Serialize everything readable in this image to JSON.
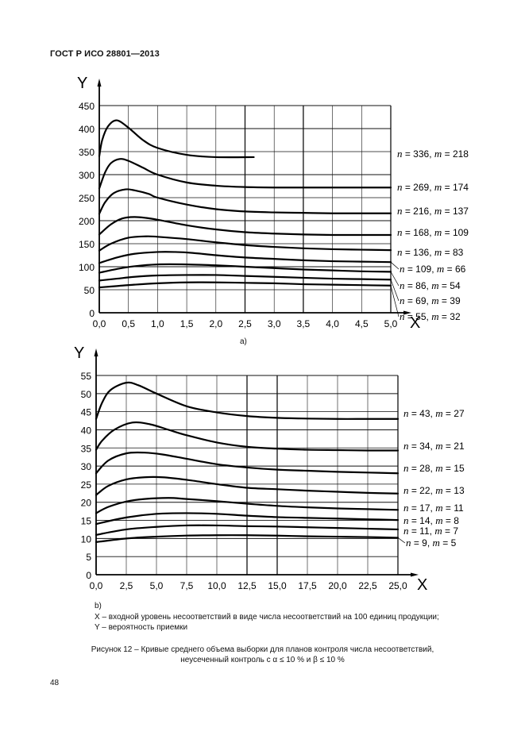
{
  "header": {
    "title": "ГОСТ Р ИСО 28801—2013"
  },
  "chart_data": [
    {
      "id": "a",
      "type": "line",
      "sublabel": "a)",
      "xlabel": "X",
      "ylabel": "Y",
      "xlim": [
        0,
        5.0
      ],
      "ylim": [
        0,
        450
      ],
      "xticks": [
        "0,0",
        "0,5",
        "1,0",
        "1,5",
        "2,0",
        "2,5",
        "3,0",
        "3,5",
        "4,0",
        "4,5",
        "5,0"
      ],
      "yticks": [
        "0",
        "50",
        "100",
        "150",
        "200",
        "250",
        "300",
        "350",
        "400",
        "450"
      ],
      "grid": true,
      "legend_position": "right",
      "series": [
        {
          "name": "n = 336, m = 218",
          "n": "336",
          "m": "218",
          "x": [
            0,
            0.05,
            0.15,
            0.3,
            0.5,
            0.75,
            1.0,
            1.5,
            2.0,
            2.65
          ],
          "y": [
            340,
            375,
            405,
            418,
            402,
            375,
            358,
            343,
            338,
            338
          ]
        },
        {
          "name": "n = 269, m = 174",
          "n": "269",
          "m": "174",
          "x": [
            0,
            0.1,
            0.2,
            0.35,
            0.5,
            0.75,
            1.0,
            1.5,
            2.0,
            2.5,
            3.0,
            3.5,
            4.0,
            4.5,
            5.0
          ],
          "y": [
            270,
            305,
            325,
            334,
            330,
            315,
            300,
            283,
            276,
            273,
            272,
            272,
            272,
            272,
            272
          ]
        },
        {
          "name": "n = 216, m = 137",
          "n": "216",
          "m": "137",
          "x": [
            0,
            0.1,
            0.25,
            0.45,
            0.6,
            0.85,
            1.0,
            1.5,
            2.0,
            2.5,
            3.0,
            3.5,
            4.0,
            4.5,
            5.0
          ],
          "y": [
            215,
            240,
            260,
            268,
            266,
            258,
            250,
            235,
            225,
            220,
            218,
            217,
            216,
            216,
            216
          ]
        },
        {
          "name": "n = 168, m = 109",
          "n": "168",
          "m": "109",
          "x": [
            0,
            0.2,
            0.4,
            0.6,
            0.8,
            1.0,
            1.5,
            2.0,
            2.5,
            3.0,
            3.5,
            4.0,
            4.5,
            5.0
          ],
          "y": [
            170,
            192,
            205,
            208,
            206,
            202,
            190,
            181,
            175,
            172,
            170,
            169,
            169,
            169
          ]
        },
        {
          "name": "n = 136, m = 83",
          "n": "136",
          "m": "83",
          "x": [
            0,
            0.2,
            0.5,
            0.8,
            1.0,
            1.5,
            2.0,
            2.5,
            3.0,
            3.5,
            4.0,
            4.5,
            5.0
          ],
          "y": [
            135,
            150,
            163,
            166,
            165,
            160,
            153,
            147,
            143,
            140,
            138,
            137,
            136
          ]
        },
        {
          "name": "n = 109, m = 66",
          "n": "109",
          "m": "66",
          "x": [
            0,
            0.3,
            0.6,
            1.0,
            1.3,
            1.6,
            2.0,
            2.5,
            3.0,
            3.5,
            4.0,
            4.5,
            5.0
          ],
          "y": [
            108,
            120,
            128,
            132,
            132,
            130,
            125,
            120,
            117,
            114,
            112,
            111,
            110
          ]
        },
        {
          "name": "n = 86, m = 54",
          "n": "86",
          "m": "54",
          "x": [
            0,
            0.3,
            0.6,
            1.0,
            1.5,
            2.0,
            2.5,
            3.0,
            3.5,
            4.0,
            4.5,
            5.0
          ],
          "y": [
            87,
            95,
            101,
            105,
            105,
            103,
            100,
            97,
            94,
            92,
            90,
            89
          ]
        },
        {
          "name": "n = 69, m = 39",
          "n": "69",
          "m": "39",
          "x": [
            0,
            0.3,
            0.6,
            1.0,
            1.5,
            2.0,
            2.5,
            3.0,
            3.5,
            4.0,
            4.5,
            5.0
          ],
          "y": [
            70,
            74,
            78,
            81,
            82,
            82,
            80,
            78,
            76,
            74,
            73,
            72
          ]
        },
        {
          "name": "n = 55, m = 32",
          "n": "55",
          "m": "32",
          "x": [
            0,
            0.3,
            0.6,
            1.0,
            1.5,
            2.0,
            2.5,
            3.0,
            3.5,
            4.0,
            4.5,
            5.0
          ],
          "y": [
            55,
            58,
            61,
            64,
            66,
            66,
            65,
            64,
            62,
            61,
            60,
            59
          ]
        }
      ]
    },
    {
      "id": "b",
      "type": "line",
      "sublabel": "b)",
      "xlabel": "X",
      "ylabel": "Y",
      "xlim": [
        0,
        25.0
      ],
      "ylim": [
        0,
        55
      ],
      "xticks": [
        "0,0",
        "2,5",
        "5,0",
        "7,5",
        "10,0",
        "12,5",
        "15,0",
        "17,5",
        "20,0",
        "22,5",
        "25,0"
      ],
      "yticks": [
        "0",
        "5",
        "10",
        "15",
        "20",
        "25",
        "30",
        "35",
        "40",
        "45",
        "50",
        "55"
      ],
      "grid": true,
      "legend_position": "right",
      "series": [
        {
          "name": "n = 43, m = 27",
          "n": "43",
          "m": "27",
          "x": [
            0,
            0.5,
            1.2,
            2.5,
            3.5,
            5.0,
            7.5,
            10,
            12.5,
            15,
            17.5,
            20,
            22.5,
            25
          ],
          "y": [
            43,
            47.5,
            51,
            53,
            52.3,
            50,
            46.5,
            44.8,
            43.8,
            43.3,
            43.1,
            43,
            43,
            43
          ]
        },
        {
          "name": "n = 34, m = 21",
          "n": "34",
          "m": "21",
          "x": [
            0,
            0.5,
            1.5,
            3.0,
            4.5,
            6,
            7.5,
            10,
            12.5,
            15,
            17.5,
            20,
            22.5,
            25
          ],
          "y": [
            34.5,
            37,
            40,
            42,
            41.5,
            40,
            38.5,
            36.5,
            35.3,
            34.8,
            34.5,
            34.4,
            34.3,
            34.3
          ]
        },
        {
          "name": "n = 28, m = 15",
          "n": "28",
          "m": "15",
          "x": [
            0,
            1,
            2.5,
            4,
            5.5,
            7.5,
            10,
            12.5,
            15,
            17.5,
            20,
            22.5,
            25
          ],
          "y": [
            28,
            31.5,
            33.5,
            33.7,
            33.2,
            32,
            30.5,
            29.6,
            29,
            28.7,
            28.4,
            28.2,
            28
          ]
        },
        {
          "name": "n = 22, m = 13",
          "n": "22",
          "m": "13",
          "x": [
            0,
            1,
            2.5,
            4,
            5.5,
            7.5,
            10,
            12.5,
            15,
            17.5,
            20,
            22.5,
            25
          ],
          "y": [
            22,
            24.5,
            26.3,
            26.9,
            26.9,
            26.2,
            25,
            24,
            23.6,
            23.2,
            22.9,
            22.6,
            22.4
          ]
        },
        {
          "name": "n = 17, m = 11",
          "n": "17",
          "m": "11",
          "x": [
            0,
            1,
            2.5,
            4,
            6,
            7.5,
            10,
            12.5,
            15,
            17.5,
            20,
            22.5,
            25
          ],
          "y": [
            17,
            18.7,
            20.2,
            20.9,
            21.2,
            20.9,
            20.3,
            19.6,
            19,
            18.6,
            18.3,
            18.1,
            17.9
          ]
        },
        {
          "name": "n = 14, m = 8",
          "n": "14",
          "m": "8",
          "x": [
            0,
            2.5,
            5,
            7.5,
            10,
            12.5,
            15,
            17.5,
            20,
            22.5,
            25
          ],
          "y": [
            14,
            15.8,
            16.8,
            17,
            16.8,
            16.3,
            15.9,
            15.7,
            15.5,
            15.3,
            15.1
          ]
        },
        {
          "name": "n = 11, m = 7",
          "n": "11",
          "m": "7",
          "x": [
            0,
            2.5,
            5,
            7.5,
            10,
            12.5,
            15,
            17.5,
            20,
            22.5,
            25
          ],
          "y": [
            11,
            12.5,
            13.2,
            13.6,
            13.6,
            13.4,
            13.3,
            13.1,
            12.9,
            12.7,
            12.5
          ]
        },
        {
          "name": "n = 9, m = 5",
          "n": "9",
          "m": "5",
          "x": [
            0,
            2.5,
            5,
            7.5,
            10,
            12.5,
            15,
            17.5,
            20,
            22.5,
            25
          ],
          "y": [
            9,
            10,
            10.5,
            10.8,
            10.9,
            10.9,
            10.8,
            10.6,
            10.5,
            10.4,
            10.2
          ]
        }
      ]
    }
  ],
  "legend": {
    "x_desc": "X – входной уровень несоответствий в виде числа несоответствий на 100 единиц продукции;",
    "y_desc": "Y – вероятность приемки"
  },
  "caption": {
    "line1": "Рисунок 12 – Кривые среднего объема выборки для планов контроля числа несоответствий,",
    "line2": "неусеченный контроль с α ≤ 10 % и β ≤ 10 %"
  },
  "page_number": "48"
}
